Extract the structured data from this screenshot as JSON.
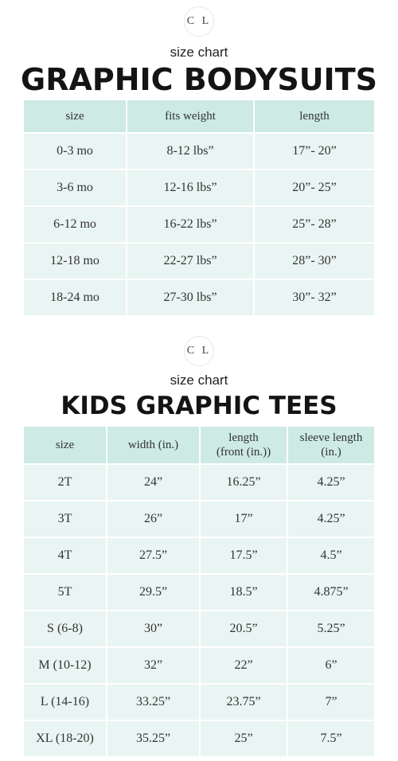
{
  "bodysuits": {
    "logo": "C L",
    "subtitle": "size chart",
    "title": "GRAPHIC BODYSUITS",
    "headers": [
      "size",
      "fits weight",
      "length"
    ],
    "rows": [
      [
        "0-3 mo",
        "8-12 lbs”",
        "17”- 20”"
      ],
      [
        "3-6 mo",
        "12-16 lbs”",
        "20”- 25”"
      ],
      [
        "6-12 mo",
        "16-22 lbs”",
        "25”- 28”"
      ],
      [
        "12-18 mo",
        "22-27 lbs”",
        "28”- 30”"
      ],
      [
        "18-24 mo",
        "27-30 lbs”",
        "30”- 32”"
      ]
    ]
  },
  "tees": {
    "logo": "C L",
    "subtitle": "size chart",
    "title": "KIDS GRAPHIC TEES",
    "headers": [
      "size",
      "width (in.)",
      "length\n(front (in.))",
      "sleeve length\n(in.)"
    ],
    "rows": [
      [
        "2T",
        "24”",
        "16.25”",
        "4.25”"
      ],
      [
        "3T",
        "26”",
        "17”",
        "4.25”"
      ],
      [
        "4T",
        "27.5”",
        "17.5”",
        "4.5”"
      ],
      [
        "5T",
        "29.5”",
        "18.5”",
        "4.875”"
      ],
      [
        "S (6-8)",
        "30”",
        "20.5”",
        "5.25”"
      ],
      [
        "M (10-12)",
        "32”",
        "22”",
        "6”"
      ],
      [
        "L (14-16)",
        "33.25”",
        "23.75”",
        "7”"
      ],
      [
        "XL (18-20)",
        "35.25”",
        "25”",
        "7.5”"
      ]
    ]
  },
  "colors": {
    "header_bg": "#cdeae4",
    "body_bg": "#e9f5f3",
    "title": "#141414"
  }
}
